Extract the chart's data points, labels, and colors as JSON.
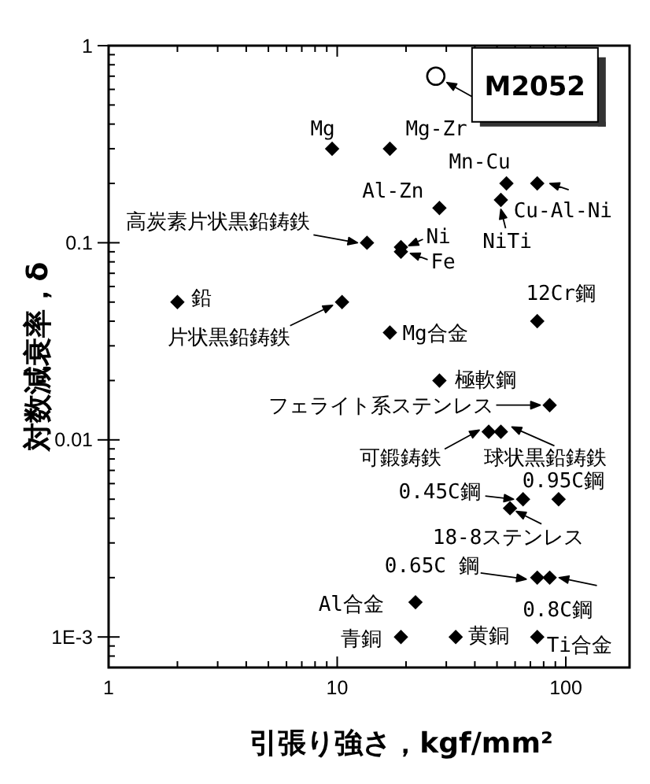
{
  "chart_data": {
    "type": "scatter",
    "xlabel": "引張り強さ，kgf/mm²",
    "ylabel": "対数減衰率，δ",
    "log": "xy",
    "marker": "diamond",
    "xlim": [
      1,
      190
    ],
    "ylim": [
      0.0007,
      1
    ],
    "xticks": [
      1,
      {
        "value": 2,
        "label": null
      },
      {
        "value": 3,
        "label": null
      },
      {
        "value": 4,
        "label": null
      },
      {
        "value": 5,
        "label": null
      },
      {
        "value": 6,
        "label": null
      },
      {
        "value": 7,
        "label": null
      },
      {
        "value": 8,
        "label": null
      },
      {
        "value": 9,
        "label": null
      },
      10,
      {
        "value": 20,
        "label": null
      },
      {
        "value": 30,
        "label": null
      },
      {
        "value": 40,
        "label": null
      },
      {
        "value": 50,
        "label": null
      },
      {
        "value": 60,
        "label": null
      },
      {
        "value": 70,
        "label": null
      },
      {
        "value": 80,
        "label": null
      },
      {
        "value": 90,
        "label": null
      },
      100
    ],
    "yticks": [
      {
        "value": 0.0008,
        "label": null
      },
      {
        "value": 0.0009,
        "label": null
      },
      {
        "value": 0.001,
        "label": "1E-3"
      },
      {
        "value": 0.002,
        "label": null
      },
      {
        "value": 0.003,
        "label": null
      },
      {
        "value": 0.004,
        "label": null
      },
      {
        "value": 0.005,
        "label": null
      },
      {
        "value": 0.006,
        "label": null
      },
      {
        "value": 0.007,
        "label": null
      },
      {
        "value": 0.008,
        "label": null
      },
      {
        "value": 0.009,
        "label": null
      },
      0.01,
      {
        "value": 0.02,
        "label": null
      },
      {
        "value": 0.03,
        "label": null
      },
      {
        "value": 0.04,
        "label": null
      },
      {
        "value": 0.05,
        "label": null
      },
      {
        "value": 0.06,
        "label": null
      },
      {
        "value": 0.07,
        "label": null
      },
      {
        "value": 0.08,
        "label": null
      },
      {
        "value": 0.09,
        "label": null
      },
      0.1,
      {
        "value": 0.2,
        "label": null
      },
      {
        "value": 0.3,
        "label": null
      },
      {
        "value": 0.4,
        "label": null
      },
      {
        "value": 0.5,
        "label": null
      },
      {
        "value": 0.6,
        "label": null
      },
      {
        "value": 0.7,
        "label": null
      },
      {
        "value": 0.8,
        "label": null
      },
      {
        "value": 0.9,
        "label": null
      },
      1
    ],
    "series": [
      {
        "color": "#000000",
        "x": [
          9.5,
          17,
          55,
          75,
          52,
          28,
          13.5,
          19,
          19,
          2,
          10.5,
          75,
          17,
          28,
          85,
          46,
          52,
          65,
          93,
          57,
          75,
          85,
          22,
          19,
          33,
          75
        ],
        "values": [
          0.3,
          0.3,
          0.2,
          0.2,
          0.165,
          0.15,
          0.1,
          0.095,
          0.09,
          0.05,
          0.05,
          0.04,
          0.035,
          0.02,
          0.015,
          0.011,
          0.011,
          0.005,
          0.005,
          0.0045,
          0.002,
          0.002,
          0.0015,
          0.001,
          0.001,
          0.001
        ]
      },
      {
        "color": "#000000",
        "marker": "circle",
        "x": [
          27
        ],
        "values": [
          0.7
        ]
      }
    ],
    "annotations": [
      {
        "text": "Mg",
        "x": 9.5,
        "y": 0.3
      },
      {
        "text": "Mg-Zr",
        "x": 17,
        "y": 0.3
      },
      {
        "text": "Mn-Cu",
        "x": 55,
        "y": 0.2
      },
      {
        "text": "Cu-Al-Ni",
        "x": 75,
        "y": 0.2
      },
      {
        "text": "NiTi",
        "x": 52,
        "y": 0.165
      },
      {
        "text": "Al-Zn",
        "x": 28,
        "y": 0.15
      },
      {
        "text": "高炭素片状黒鉛鋳鉄",
        "x": 13.5,
        "y": 0.1
      },
      {
        "text": "Ni",
        "x": 19,
        "y": 0.095
      },
      {
        "text": "Fe",
        "x": 19,
        "y": 0.09
      },
      {
        "text": "鉛",
        "x": 2,
        "y": 0.05
      },
      {
        "text": "片状黒鉛鋳鉄",
        "x": 10.5,
        "y": 0.05
      },
      {
        "text": "12Cr鋼",
        "x": 75,
        "y": 0.04
      },
      {
        "text": "Mg合金",
        "x": 17,
        "y": 0.035
      },
      {
        "text": "極軟鋼",
        "x": 28,
        "y": 0.02
      },
      {
        "text": "フェライト系ステンレス",
        "x": 85,
        "y": 0.015
      },
      {
        "text": "可鍛鋳鉄",
        "x": 46,
        "y": 0.011
      },
      {
        "text": "球状黒鉛鋳鉄",
        "x": 52,
        "y": 0.011
      },
      {
        "text": "0.45C鋼",
        "x": 65,
        "y": 0.005
      },
      {
        "text": "0.95C鋼",
        "x": 93,
        "y": 0.005
      },
      {
        "text": "18-8ステンレス",
        "x": 57,
        "y": 0.0045
      },
      {
        "text": "0.65C 鋼",
        "x": 75,
        "y": 0.002
      },
      {
        "text": "0.8C鋼",
        "x": 85,
        "y": 0.002
      },
      {
        "text": "Al合金",
        "x": 22,
        "y": 0.0015
      },
      {
        "text": "青銅",
        "x": 19,
        "y": 0.001
      },
      {
        "text": "黄銅",
        "x": 33,
        "y": 0.001
      },
      {
        "text": "Ti合金",
        "x": 75,
        "y": 0.001
      },
      {
        "text": "M2052",
        "x": 27,
        "y": 0.7
      }
    ]
  }
}
